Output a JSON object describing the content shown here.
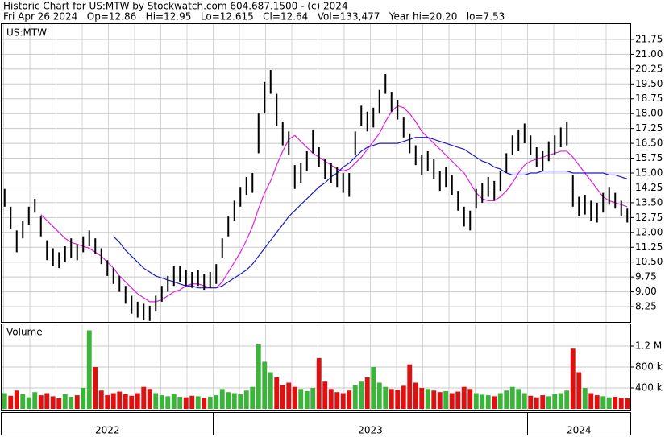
{
  "header": {
    "title": "Historic Chart for US:MTW by Stockwatch.com 604.687.1500 - (c) 2024",
    "quote": "Fri Apr 26 2024   Op=12.86   Hi=12.95   Lo=12.615   Cl=12.64   Vol=133,477   Year hi=20.20   lo=7.53"
  },
  "chart_data": [
    {
      "type": "hilo",
      "label": "US:MTW",
      "color": "#000000",
      "grid": true,
      "xlim": [
        0,
        104
      ],
      "xticks": [
        {
          "value": 0,
          "label": "2022"
        },
        {
          "value": 35,
          "label": "2023"
        },
        {
          "value": 87,
          "label": "2024"
        }
      ],
      "ylim": [
        7.48,
        22.52
      ],
      "yticks": [
        8.25,
        {
          "value": 9,
          "label": "9.00"
        },
        9.75,
        {
          "value": 10.5,
          "label": "10.50"
        },
        11.25,
        {
          "value": 12,
          "label": "12.00"
        },
        12.75,
        {
          "value": 13.5,
          "label": "13.50"
        },
        14.25,
        {
          "value": 15,
          "label": "15.00"
        },
        15.75,
        {
          "value": 16.5,
          "label": "16.50"
        },
        17.25,
        {
          "value": 18,
          "label": "18.00"
        },
        18.75,
        {
          "value": 19.5,
          "label": "19.50"
        },
        20.25,
        {
          "value": 21,
          "label": "21.00"
        },
        21.75
      ],
      "high": [
        14.2,
        13.3,
        12.1,
        12.6,
        13.3,
        13.7,
        12.8,
        11.6,
        11.2,
        11.0,
        11.3,
        11.7,
        11.4,
        11.8,
        12.1,
        11.7,
        11.2,
        10.6,
        10.2,
        9.8,
        9.3,
        8.8,
        8.5,
        8.4,
        8.3,
        8.8,
        9.3,
        9.8,
        10.3,
        10.3,
        10.1,
        10.0,
        10.1,
        9.9,
        10.0,
        10.4,
        11.7,
        12.8,
        13.6,
        14.3,
        14.8,
        15.0,
        18.0,
        19.6,
        20.2,
        19.0,
        17.6,
        17.1,
        15.4,
        15.5,
        16.1,
        17.2,
        16.3,
        15.7,
        15.5,
        15.3,
        15.0,
        15.0,
        17.1,
        18.4,
        18.1,
        18.3,
        19.2,
        20.0,
        19.1,
        18.7,
        17.8,
        17.0,
        16.4,
        15.9,
        16.1,
        15.7,
        15.1,
        15.3,
        14.9,
        14.1,
        13.3,
        13.1,
        14.2,
        14.5,
        14.8,
        14.6,
        15.1,
        16.0,
        16.9,
        17.2,
        17.5,
        16.9,
        16.3,
        16.1,
        16.6,
        16.9,
        17.3,
        17.6,
        14.9,
        13.8,
        13.9,
        13.6,
        13.5,
        14.0,
        14.3,
        14.0,
        13.6,
        13.2
      ],
      "low": [
        13.3,
        12.2,
        11.0,
        11.7,
        12.4,
        13.0,
        11.8,
        10.6,
        10.3,
        10.2,
        10.5,
        10.7,
        10.6,
        11.0,
        11.3,
        10.9,
        10.4,
        9.8,
        9.4,
        9.0,
        8.4,
        7.9,
        7.7,
        7.6,
        7.53,
        8.0,
        8.5,
        9.0,
        9.3,
        9.5,
        9.3,
        9.2,
        9.3,
        9.1,
        9.2,
        9.4,
        10.7,
        11.8,
        12.6,
        13.3,
        13.9,
        14.0,
        16.0,
        18.0,
        19.0,
        17.4,
        16.4,
        15.9,
        14.2,
        14.5,
        15.1,
        16.0,
        15.3,
        14.7,
        14.5,
        14.3,
        14.0,
        13.8,
        15.9,
        17.4,
        17.1,
        17.3,
        18.0,
        19.0,
        18.1,
        17.7,
        16.8,
        16.0,
        15.4,
        14.9,
        15.1,
        14.7,
        14.1,
        14.3,
        13.9,
        13.1,
        12.3,
        12.1,
        13.2,
        13.5,
        13.8,
        13.6,
        14.1,
        15.0,
        15.9,
        16.1,
        16.5,
        15.9,
        15.3,
        15.1,
        15.6,
        15.9,
        16.3,
        16.4,
        13.3,
        12.8,
        12.9,
        12.6,
        12.5,
        13.0,
        13.4,
        13.2,
        12.8,
        12.5
      ],
      "lines": [
        {
          "color": "#e020e0",
          "values": [
            null,
            null,
            null,
            null,
            null,
            null,
            12.9,
            12.6,
            12.3,
            12.0,
            11.7,
            11.5,
            11.4,
            11.3,
            11.2,
            11.0,
            10.8,
            10.5,
            10.2,
            9.8,
            9.5,
            9.2,
            8.9,
            8.7,
            8.5,
            8.5,
            8.6,
            8.8,
            9.0,
            9.1,
            9.3,
            9.4,
            9.4,
            9.3,
            9.2,
            9.2,
            9.5,
            10.0,
            10.5,
            11.0,
            11.6,
            12.3,
            13.2,
            14.0,
            14.6,
            15.4,
            16.1,
            16.7,
            16.9,
            16.6,
            16.3,
            16.0,
            15.8,
            15.6,
            15.4,
            15.2,
            15.1,
            15.2,
            15.5,
            15.8,
            16.2,
            16.6,
            17.0,
            17.6,
            18.1,
            18.4,
            18.3,
            18.0,
            17.6,
            17.1,
            16.8,
            16.5,
            16.2,
            15.9,
            15.6,
            15.3,
            15.0,
            14.5,
            14.0,
            13.7,
            13.6,
            13.6,
            13.8,
            14.1,
            14.5,
            15.0,
            15.4,
            15.6,
            15.7,
            15.8,
            15.9,
            16.0,
            16.1,
            16.1,
            15.8,
            15.4,
            15.0,
            14.6,
            14.2,
            13.8,
            13.6,
            13.5,
            13.4,
            13.3
          ]
        },
        {
          "color": "#1c1cc8",
          "values": [
            null,
            null,
            null,
            null,
            null,
            null,
            null,
            null,
            null,
            null,
            null,
            null,
            null,
            null,
            null,
            null,
            null,
            null,
            11.8,
            11.5,
            11.1,
            10.8,
            10.5,
            10.2,
            10.0,
            9.8,
            9.7,
            9.6,
            9.5,
            9.4,
            9.3,
            9.3,
            9.2,
            9.2,
            9.2,
            9.2,
            9.3,
            9.5,
            9.7,
            9.9,
            10.1,
            10.4,
            10.8,
            11.2,
            11.6,
            12.0,
            12.4,
            12.8,
            13.1,
            13.4,
            13.7,
            14.0,
            14.3,
            14.5,
            14.8,
            15.0,
            15.3,
            15.5,
            15.8,
            16.1,
            16.3,
            16.4,
            16.5,
            16.5,
            16.5,
            16.5,
            16.6,
            16.7,
            16.8,
            16.8,
            16.8,
            16.7,
            16.6,
            16.5,
            16.4,
            16.3,
            16.2,
            16.0,
            15.8,
            15.6,
            15.5,
            15.3,
            15.2,
            15.0,
            14.9,
            14.9,
            14.9,
            15.0,
            15.0,
            15.1,
            15.1,
            15.1,
            15.1,
            15.1,
            15.0,
            15.0,
            15.0,
            15.0,
            15.0,
            15.0,
            14.9,
            14.9,
            14.8,
            14.7
          ]
        }
      ]
    },
    {
      "type": "bar",
      "label": "Volume",
      "up_color": "#3cb43c",
      "down_color": "#e01010",
      "ylim": [
        0,
        1615000
      ],
      "yticks": [
        {
          "value": 400000,
          "label": "400 k"
        },
        {
          "value": 800000,
          "label": "800 k"
        },
        {
          "value": 1200000,
          "label": "1.2 M"
        }
      ],
      "values": [
        300000,
        250000,
        350000,
        280000,
        220000,
        320000,
        260000,
        300000,
        240000,
        200000,
        280000,
        230000,
        260000,
        400000,
        1500000,
        800000,
        350000,
        260000,
        300000,
        330000,
        280000,
        250000,
        300000,
        420000,
        380000,
        300000,
        260000,
        240000,
        280000,
        230000,
        220000,
        250000,
        240000,
        210000,
        230000,
        260000,
        380000,
        320000,
        300000,
        280000,
        350000,
        420000,
        1230000,
        900000,
        700000,
        600000,
        450000,
        500000,
        420000,
        380000,
        340000,
        400000,
        970000,
        520000,
        380000,
        320000,
        300000,
        350000,
        450000,
        520000,
        600000,
        800000,
        500000,
        420000,
        380000,
        360000,
        440000,
        850000,
        500000,
        400000,
        380000,
        350000,
        320000,
        340000,
        300000,
        330000,
        420000,
        380000,
        300000,
        270000,
        260000,
        240000,
        300000,
        350000,
        420000,
        380000,
        300000,
        250000,
        220000,
        260000,
        240000,
        280000,
        300000,
        350000,
        1150000,
        700000,
        400000,
        300000,
        260000,
        240000,
        220000,
        230000,
        210000,
        200000
      ]
    }
  ]
}
